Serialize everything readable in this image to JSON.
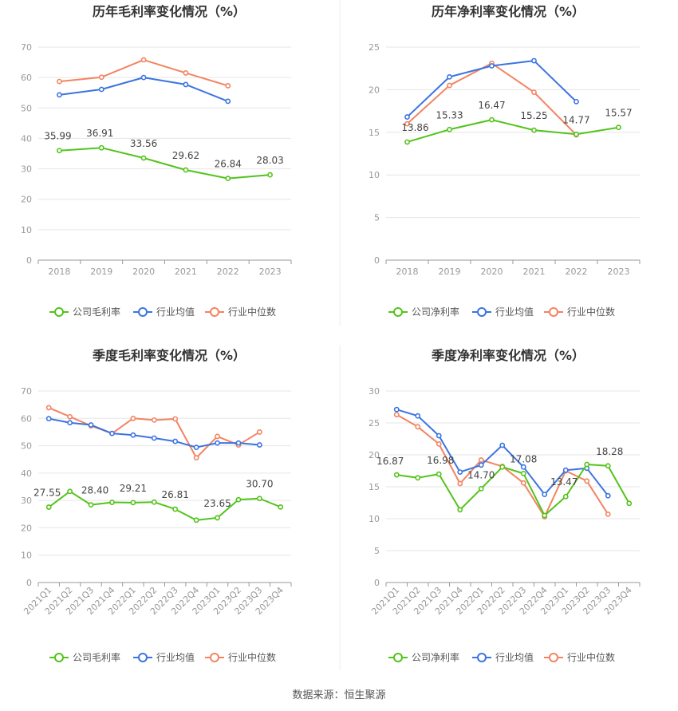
{
  "source_text": "数据来源：恒生聚源",
  "colors": {
    "company": "#52c41a",
    "industry_avg": "#3b74e0",
    "industry_median": "#f28461"
  },
  "chart_data": [
    {
      "type": "line",
      "title": "历年毛利率变化情况（%）",
      "categories": [
        "2018",
        "2019",
        "2020",
        "2021",
        "2022",
        "2023"
      ],
      "ylim": [
        0,
        70
      ],
      "yticks": [
        0,
        10,
        20,
        30,
        40,
        50,
        60,
        70
      ],
      "grid": true,
      "legend_position": "bottom-center",
      "series": [
        {
          "name": "公司毛利率",
          "key": "company",
          "values": [
            35.99,
            36.91,
            33.56,
            29.62,
            26.84,
            28.03
          ],
          "labels": [
            "35.99",
            "36.91",
            "33.56",
            "29.62",
            "26.84",
            "28.03"
          ]
        },
        {
          "name": "行业均值",
          "key": "industry_avg",
          "values": [
            54.3,
            56.1,
            60.0,
            57.7,
            52.2,
            null
          ]
        },
        {
          "name": "行业中位数",
          "key": "industry_median",
          "values": [
            58.7,
            60.1,
            65.8,
            61.5,
            57.3,
            null
          ]
        }
      ]
    },
    {
      "type": "line",
      "title": "历年净利率变化情况（%）",
      "categories": [
        "2018",
        "2019",
        "2020",
        "2021",
        "2022",
        "2023"
      ],
      "ylim": [
        0,
        25
      ],
      "yticks": [
        0,
        5,
        10,
        15,
        20,
        25
      ],
      "grid": true,
      "legend_position": "bottom-center",
      "series": [
        {
          "name": "公司净利率",
          "key": "company",
          "values": [
            13.86,
            15.33,
            16.47,
            15.25,
            14.77,
            15.57
          ],
          "labels": [
            "13.86",
            "15.33",
            "16.47",
            "15.25",
            "14.77",
            "15.57"
          ]
        },
        {
          "name": "行业均值",
          "key": "industry_avg",
          "values": [
            16.8,
            21.5,
            22.8,
            23.4,
            18.6,
            null
          ]
        },
        {
          "name": "行业中位数",
          "key": "industry_median",
          "values": [
            16.0,
            20.5,
            23.1,
            19.7,
            14.7,
            null
          ]
        }
      ]
    },
    {
      "type": "line",
      "title": "季度毛利率变化情况（%）",
      "categories": [
        "2021Q1",
        "2021Q2",
        "2021Q3",
        "2021Q4",
        "2022Q1",
        "2022Q2",
        "2022Q3",
        "2022Q4",
        "2023Q1",
        "2023Q2",
        "2023Q3",
        "2023Q4"
      ],
      "ylim": [
        0,
        70
      ],
      "yticks": [
        0,
        10,
        20,
        30,
        40,
        50,
        60,
        70
      ],
      "grid": true,
      "rotate_x_labels": true,
      "legend_position": "bottom-center",
      "series": [
        {
          "name": "公司毛利率",
          "key": "company",
          "values": [
            27.55,
            33.3,
            28.4,
            29.3,
            29.21,
            29.4,
            26.81,
            22.8,
            23.65,
            30.3,
            30.7,
            27.6
          ],
          "labels": [
            "27.55",
            null,
            "28.40",
            null,
            "29.21",
            null,
            "26.81",
            null,
            "23.65",
            null,
            "30.70",
            null
          ]
        },
        {
          "name": "行业均值",
          "key": "industry_avg",
          "values": [
            59.9,
            58.4,
            57.6,
            54.5,
            53.9,
            52.8,
            51.6,
            49.4,
            51.0,
            51.0,
            50.3,
            null
          ]
        },
        {
          "name": "行业中位数",
          "key": "industry_median",
          "values": [
            63.9,
            60.6,
            57.3,
            54.5,
            60.0,
            59.4,
            59.8,
            45.6,
            53.4,
            50.3,
            55.0,
            null
          ]
        }
      ]
    },
    {
      "type": "line",
      "title": "季度净利率变化情况（%）",
      "categories": [
        "2021Q1",
        "2021Q2",
        "2021Q3",
        "2021Q4",
        "2022Q1",
        "2022Q2",
        "2022Q3",
        "2022Q4",
        "2023Q1",
        "2023Q2",
        "2023Q3",
        "2023Q4"
      ],
      "ylim": [
        0,
        30
      ],
      "yticks": [
        0,
        5,
        10,
        15,
        20,
        25,
        30
      ],
      "grid": true,
      "rotate_x_labels": true,
      "legend_position": "bottom-center",
      "series": [
        {
          "name": "公司净利率",
          "key": "company",
          "values": [
            16.87,
            16.4,
            16.98,
            11.4,
            14.7,
            18.1,
            17.08,
            10.5,
            13.47,
            18.5,
            18.28,
            12.4
          ],
          "labels": [
            "16.87",
            null,
            "16.98",
            null,
            "14.70",
            null,
            "17.08",
            null,
            "13.47",
            null,
            "18.28",
            null
          ]
        },
        {
          "name": "行业均值",
          "key": "industry_avg",
          "values": [
            27.1,
            26.1,
            23.0,
            17.3,
            18.4,
            21.5,
            18.1,
            13.8,
            17.6,
            17.9,
            13.6,
            null
          ]
        },
        {
          "name": "行业中位数",
          "key": "industry_median",
          "values": [
            26.3,
            24.4,
            21.7,
            15.5,
            19.2,
            18.2,
            15.6,
            10.3,
            17.5,
            15.9,
            10.7,
            null
          ]
        }
      ]
    }
  ]
}
